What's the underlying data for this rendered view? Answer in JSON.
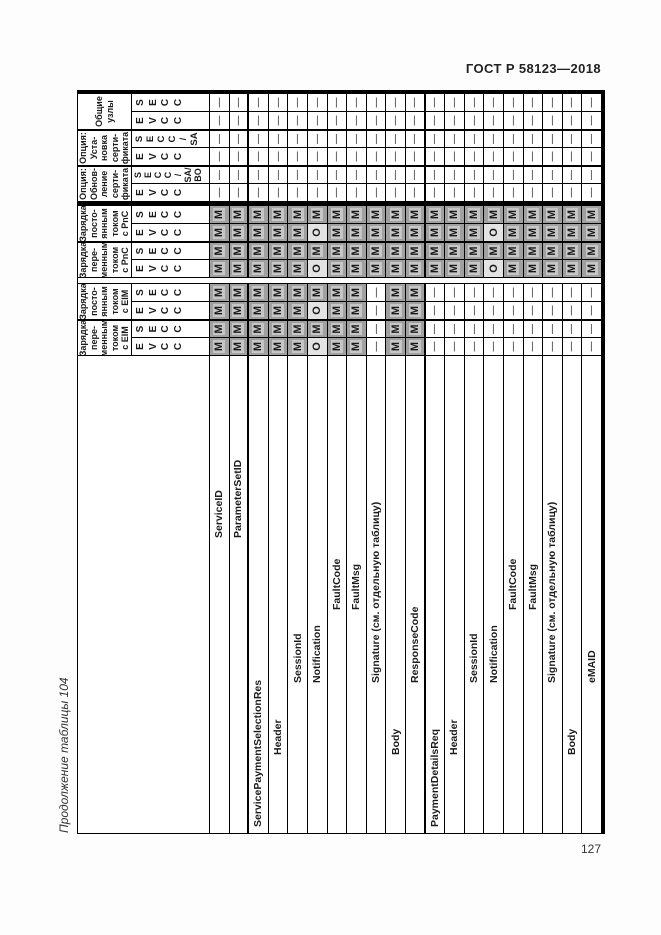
{
  "page": {
    "header": "ГОСТ Р 58123—2018",
    "page_number": "127",
    "caption": "Продолжение таблицы 104"
  },
  "table": {
    "marks": {
      "mandatory": "М",
      "optional": "О",
      "none": "—"
    },
    "groups": [
      {
        "label_lines": [
          "Зарядка",
          "пере-",
          "менным",
          "током",
          "с EIM"
        ],
        "subs": [
          {
            "lines": [
              "E",
              "V",
              "C",
              "C"
            ]
          },
          {
            "lines": [
              "S",
              "E",
              "C",
              "C"
            ]
          }
        ]
      },
      {
        "label_lines": [
          "Зарядка",
          "посто-",
          "янным",
          "током",
          "с EIM"
        ],
        "subs": [
          {
            "lines": [
              "E",
              "V",
              "C",
              "C"
            ]
          },
          {
            "lines": [
              "S",
              "E",
              "C",
              "C"
            ]
          }
        ]
      },
      {
        "label_lines": [
          "Зарядка",
          "пере-",
          "менным",
          "током",
          "с PnC"
        ],
        "subs": [
          {
            "lines": [
              "E",
              "V",
              "C",
              "C"
            ]
          },
          {
            "lines": [
              "S",
              "E",
              "C",
              "C"
            ]
          }
        ]
      },
      {
        "label_lines": [
          "Зарядка",
          "посто-",
          "янным",
          "током",
          "с PnC"
        ],
        "subs": [
          {
            "lines": [
              "E",
              "V",
              "C",
              "C"
            ]
          },
          {
            "lines": [
              "S",
              "E",
              "C",
              "C"
            ]
          }
        ]
      },
      {
        "label_lines": [
          "Опция:",
          "Обнов-",
          "ление",
          "серти-",
          "фиката"
        ],
        "subs": [
          {
            "lines": [
              "E",
              "V",
              "C",
              "C"
            ]
          },
          {
            "lines": [
              "S",
              "E",
              "C",
              "C",
              "/",
              "SA/",
              "BO"
            ]
          }
        ]
      },
      {
        "label_lines": [
          "Опция:",
          "Уста-",
          "новка",
          "серти-",
          "фиката"
        ],
        "subs": [
          {
            "lines": [
              "E",
              "V",
              "C",
              "C"
            ]
          },
          {
            "lines": [
              "S",
              "E",
              "C",
              "C",
              "/",
              "SA"
            ]
          }
        ]
      },
      {
        "label_lines": [
          "Общие",
          "узлы"
        ],
        "subs": [
          {
            "lines": [
              "E",
              "V",
              "C",
              "C"
            ]
          },
          {
            "lines": [
              "S",
              "E",
              "C",
              "C"
            ]
          }
        ]
      }
    ],
    "rows": [
      {
        "label": "ServiceID",
        "indent": 5,
        "cells": [
          "М",
          "М",
          "М",
          "М",
          "М",
          "М",
          "М",
          "М",
          "—",
          "—",
          "—",
          "—",
          "—",
          "—"
        ]
      },
      {
        "label": "ParameterSetID",
        "indent": 5,
        "thick_after": true,
        "cells": [
          "М",
          "М",
          "М",
          "М",
          "М",
          "М",
          "М",
          "М",
          "—",
          "—",
          "—",
          "—",
          "—",
          "—"
        ]
      },
      {
        "label": "ServicePaymentSelectionRes",
        "indent": 1,
        "cells": [
          "М",
          "М",
          "М",
          "М",
          "М",
          "М",
          "М",
          "М",
          "—",
          "—",
          "—",
          "—",
          "—",
          "—"
        ]
      },
      {
        "label": "Header",
        "indent": 2,
        "cells": [
          "М",
          "М",
          "М",
          "М",
          "М",
          "М",
          "М",
          "М",
          "—",
          "—",
          "—",
          "—",
          "—",
          "—"
        ]
      },
      {
        "label": "SessionId",
        "indent": 3,
        "cells": [
          "М",
          "М",
          "М",
          "М",
          "М",
          "М",
          "М",
          "М",
          "—",
          "—",
          "—",
          "—",
          "—",
          "—"
        ]
      },
      {
        "label": "Notification",
        "indent": 3,
        "cells": [
          "О",
          "М",
          "О",
          "М",
          "О",
          "М",
          "О",
          "М",
          "—",
          "—",
          "—",
          "—",
          "—",
          "—"
        ]
      },
      {
        "label": "FaultCode",
        "indent": 4,
        "cells": [
          "М",
          "М",
          "М",
          "М",
          "М",
          "М",
          "М",
          "М",
          "—",
          "—",
          "—",
          "—",
          "—",
          "—"
        ]
      },
      {
        "label": "FaultMsg",
        "indent": 4,
        "cells": [
          "М",
          "М",
          "М",
          "М",
          "М",
          "М",
          "М",
          "М",
          "—",
          "—",
          "—",
          "—",
          "—",
          "—"
        ]
      },
      {
        "label": "Signature (см. отдельную таблицу)",
        "indent": 3,
        "cells": [
          "—",
          "—",
          "—",
          "—",
          "М",
          "М",
          "М",
          "М",
          "—",
          "—",
          "—",
          "—",
          "—",
          "—"
        ]
      },
      {
        "label": "Body",
        "indent": 2,
        "cells": [
          "М",
          "М",
          "М",
          "М",
          "М",
          "М",
          "М",
          "М",
          "—",
          "—",
          "—",
          "—",
          "—",
          "—"
        ]
      },
      {
        "label": "ResponseCode",
        "indent": 3,
        "thick_after": true,
        "cells": [
          "М",
          "М",
          "М",
          "М",
          "М",
          "М",
          "М",
          "М",
          "—",
          "—",
          "—",
          "—",
          "—",
          "—"
        ]
      },
      {
        "label": "PaymentDetailsReq",
        "indent": 1,
        "cells": [
          "—",
          "—",
          "—",
          "—",
          "М",
          "М",
          "М",
          "М",
          "—",
          "—",
          "—",
          "—",
          "—",
          "—"
        ]
      },
      {
        "label": "Header",
        "indent": 2,
        "cells": [
          "—",
          "—",
          "—",
          "—",
          "М",
          "М",
          "М",
          "М",
          "—",
          "—",
          "—",
          "—",
          "—",
          "—"
        ]
      },
      {
        "label": "SessionId",
        "indent": 3,
        "cells": [
          "—",
          "—",
          "—",
          "—",
          "М",
          "М",
          "М",
          "М",
          "—",
          "—",
          "—",
          "—",
          "—",
          "—"
        ]
      },
      {
        "label": "Notification",
        "indent": 3,
        "cells": [
          "—",
          "—",
          "—",
          "—",
          "О",
          "М",
          "О",
          "М",
          "—",
          "—",
          "—",
          "—",
          "—",
          "—"
        ]
      },
      {
        "label": "FaultCode",
        "indent": 4,
        "cells": [
          "—",
          "—",
          "—",
          "—",
          "М",
          "М",
          "М",
          "М",
          "—",
          "—",
          "—",
          "—",
          "—",
          "—"
        ]
      },
      {
        "label": "FaultMsg",
        "indent": 4,
        "cells": [
          "—",
          "—",
          "—",
          "—",
          "М",
          "М",
          "М",
          "М",
          "—",
          "—",
          "—",
          "—",
          "—",
          "—"
        ]
      },
      {
        "label": "Signature (см. отдельную таблицу)",
        "indent": 3,
        "cells": [
          "—",
          "—",
          "—",
          "—",
          "М",
          "М",
          "М",
          "М",
          "—",
          "—",
          "—",
          "—",
          "—",
          "—"
        ]
      },
      {
        "label": "Body",
        "indent": 2,
        "cells": [
          "—",
          "—",
          "—",
          "—",
          "М",
          "М",
          "М",
          "М",
          "—",
          "—",
          "—",
          "—",
          "—",
          "—"
        ]
      },
      {
        "label": "eMAID",
        "indent": 3,
        "cells": [
          "—",
          "—",
          "—",
          "—",
          "М",
          "М",
          "М",
          "М",
          "—",
          "—",
          "—",
          "—",
          "—",
          "—"
        ]
      }
    ]
  }
}
